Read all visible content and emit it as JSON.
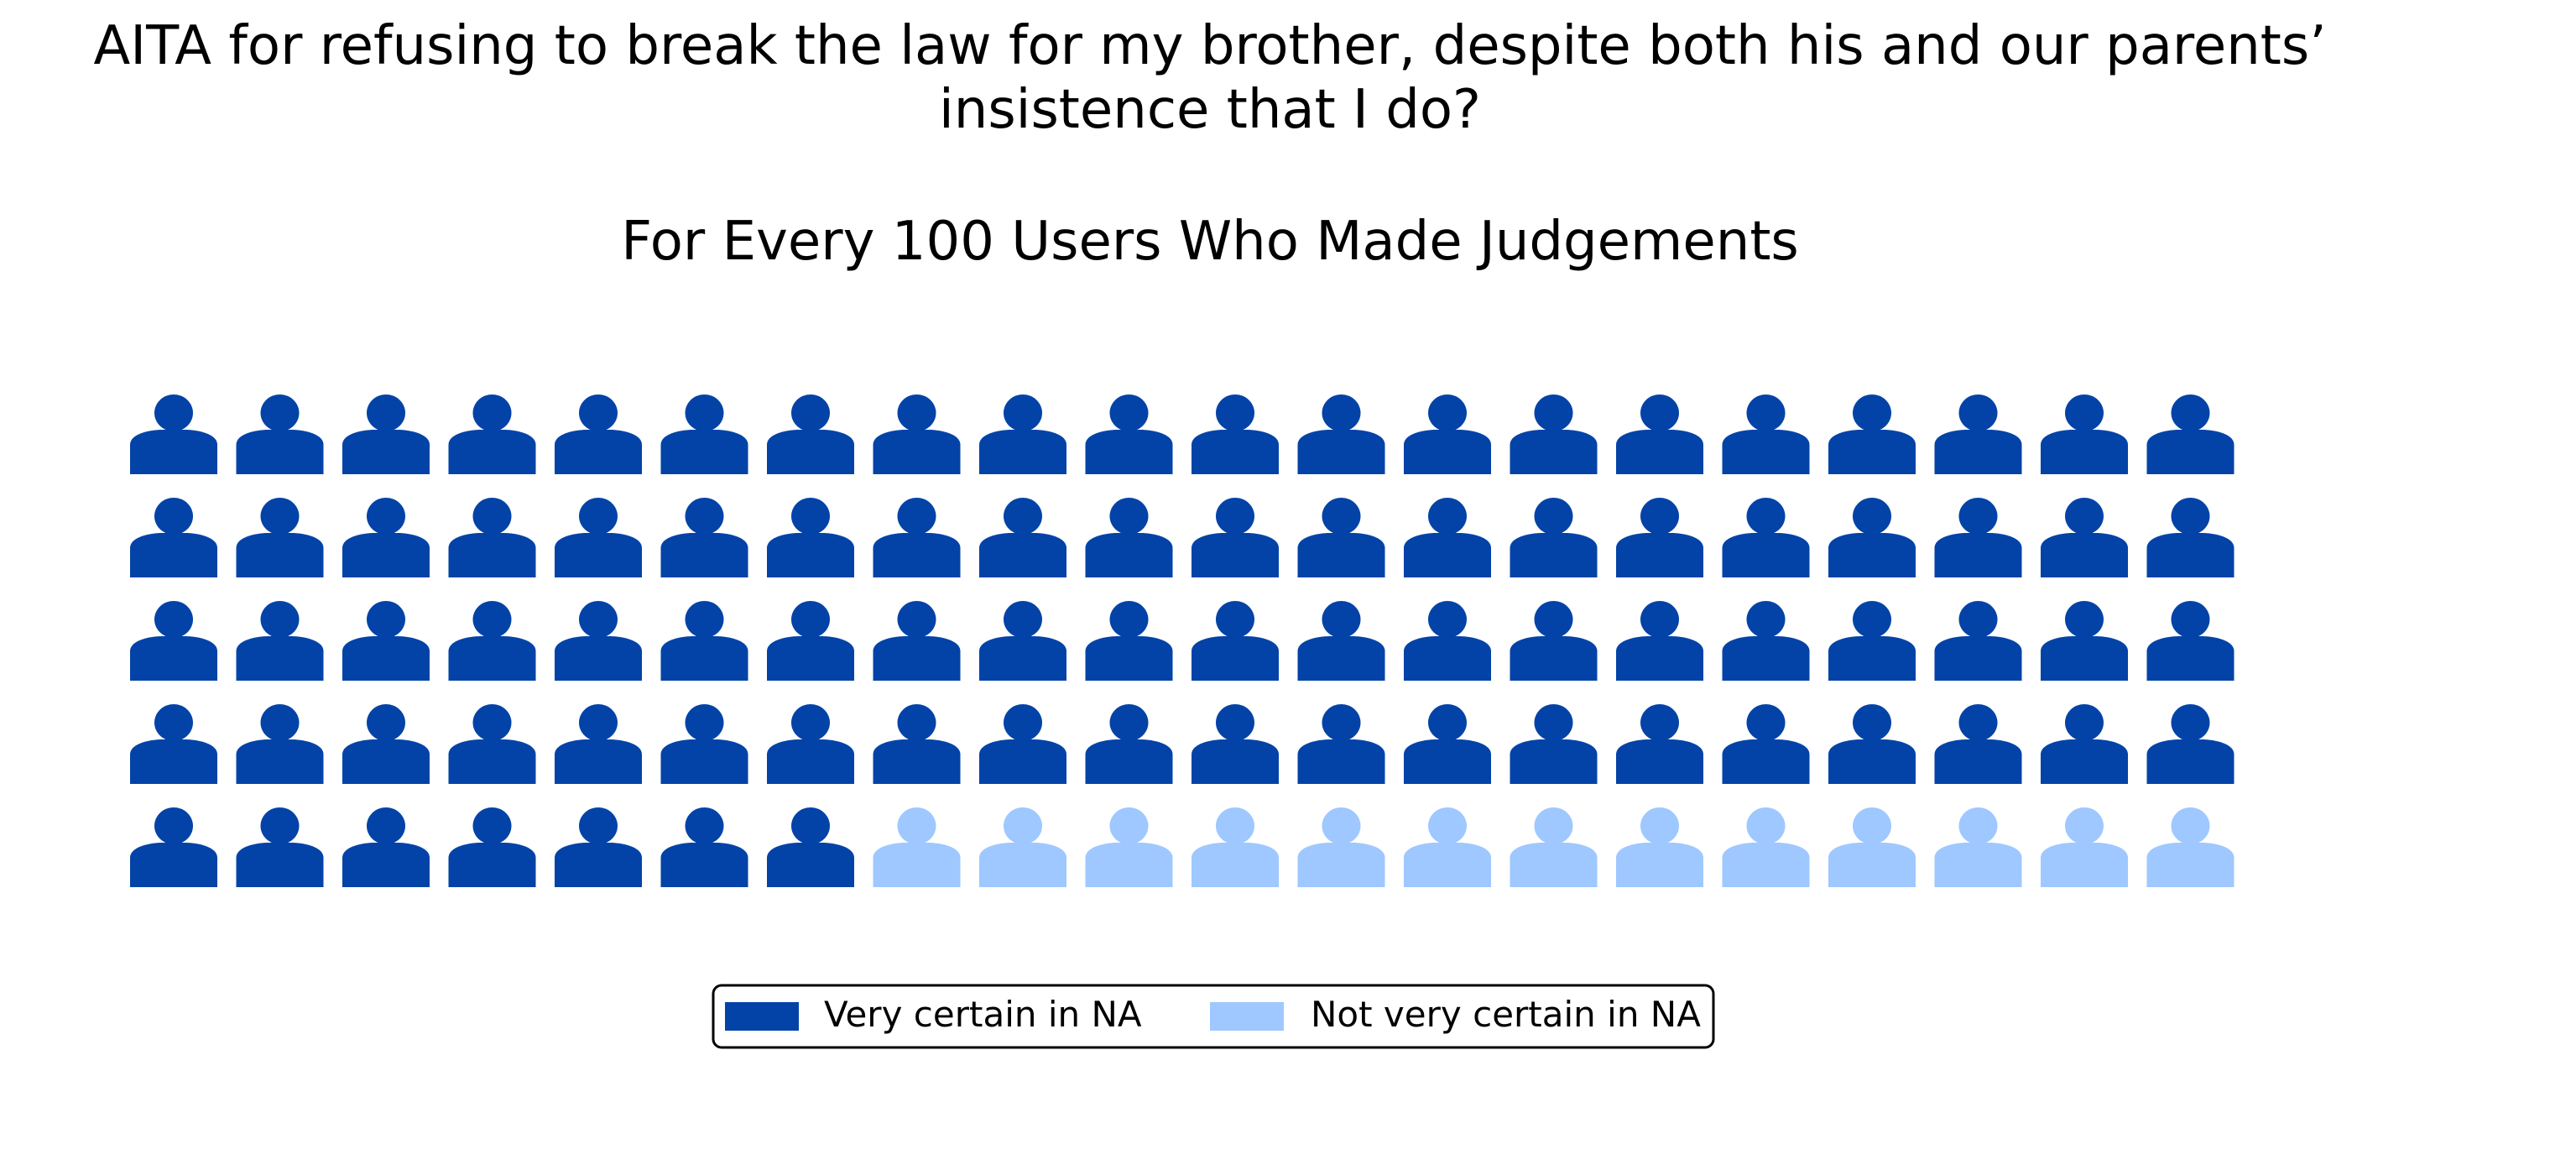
{
  "chart_data": {
    "type": "pictogram",
    "title_lines": [
      "AITA for refusing to break the law for my brother, despite both his and our parents’",
      "insistence that I do?"
    ],
    "subtitle": "For Every 100 Users Who Made Judgements",
    "icon": "person-icon",
    "grid": {
      "rows": 5,
      "cols": 20
    },
    "total": 100,
    "series": [
      {
        "name": "Very certain in NA",
        "value": 87,
        "color": "#0343a8"
      },
      {
        "name": "Not very certain in NA",
        "value": 13,
        "color": "#9ec8ff"
      }
    ],
    "legend_position": "bottom-center"
  }
}
